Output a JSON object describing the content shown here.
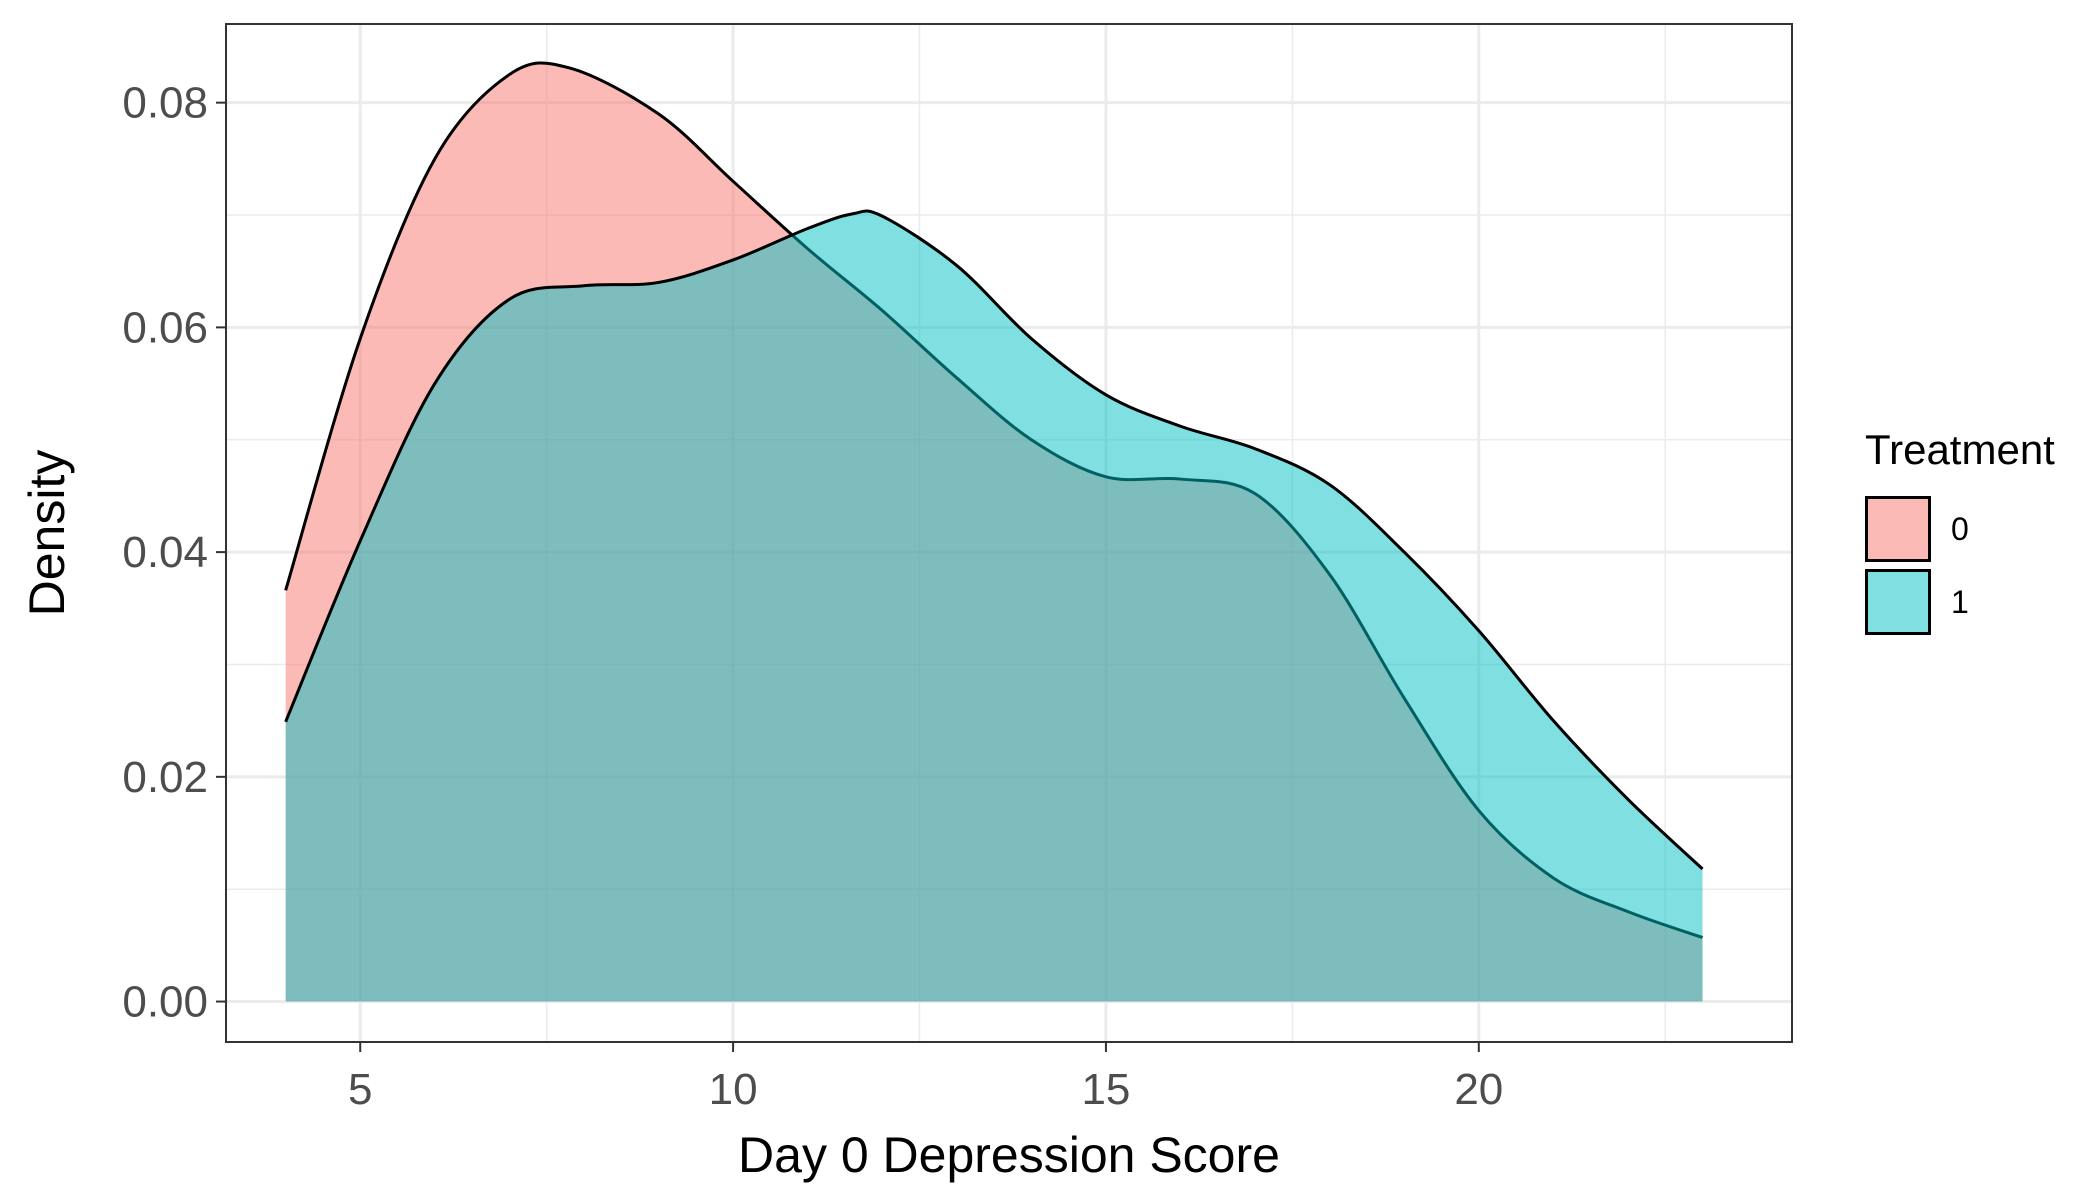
{
  "chart_data": {
    "type": "area",
    "subtype": "density",
    "xlabel": "Day 0 Depression Score",
    "ylabel": "Density",
    "xlim": [
      3.2,
      24.2
    ],
    "ylim": [
      -0.0036,
      0.087
    ],
    "x_ticks": [
      5,
      10,
      15,
      20
    ],
    "y_ticks": [
      0.0,
      0.02,
      0.04,
      0.06,
      0.08
    ],
    "x_tick_labels": [
      "5",
      "10",
      "15",
      "20"
    ],
    "y_tick_labels": [
      "0.00",
      "0.02",
      "0.04",
      "0.06",
      "0.08"
    ],
    "grid": true,
    "legend": {
      "title": "Treatment",
      "position": "right"
    },
    "series": [
      {
        "name": "0",
        "color": "#F8766D",
        "x": [
          4,
          5,
          6,
          7,
          7.8,
          9,
          10,
          11,
          12,
          13,
          14,
          15,
          16,
          17,
          18,
          19,
          20,
          21,
          22,
          23
        ],
        "values": [
          0.0366,
          0.059,
          0.075,
          0.0825,
          0.0831,
          0.079,
          0.073,
          0.067,
          0.0615,
          0.0555,
          0.05,
          0.0467,
          0.0465,
          0.0452,
          0.038,
          0.027,
          0.017,
          0.011,
          0.008,
          0.0057
        ]
      },
      {
        "name": "1",
        "color": "#00BFC4",
        "x": [
          4,
          5,
          6,
          7,
          8,
          9,
          10,
          11,
          11.6,
          12,
          13,
          14,
          15,
          16,
          17,
          18,
          19,
          20,
          21,
          22,
          23
        ],
        "values": [
          0.0249,
          0.041,
          0.055,
          0.0625,
          0.0637,
          0.064,
          0.066,
          0.0688,
          0.0701,
          0.0699,
          0.0655,
          0.059,
          0.054,
          0.0512,
          0.0492,
          0.046,
          0.04,
          0.033,
          0.025,
          0.018,
          0.0118
        ]
      }
    ]
  }
}
